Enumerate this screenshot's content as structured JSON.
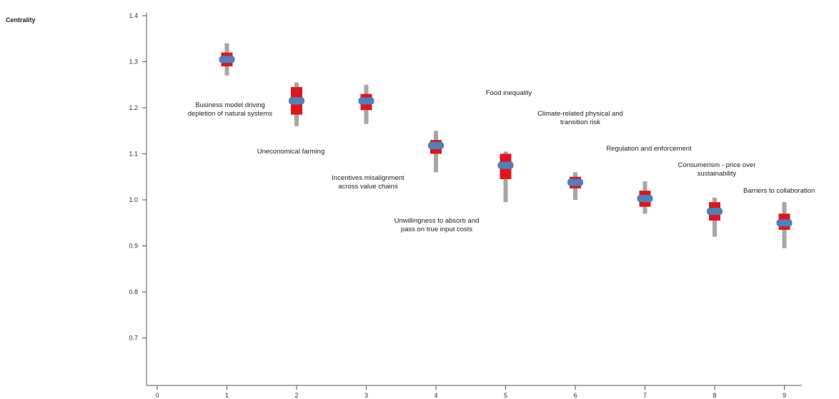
{
  "chart_data": {
    "type": "scatter",
    "title": "",
    "xlabel": "",
    "ylabel": "Centrality",
    "xlim": [
      0,
      9.3
    ],
    "ylim": [
      0.6,
      1.4
    ],
    "x_ticks": [
      "0",
      "1",
      "2",
      "3",
      "4",
      "5",
      "6",
      "7",
      "8",
      "9"
    ],
    "y_ticks": [
      "0.7",
      "0.8",
      "0.9",
      "1.0",
      "1.1",
      "1.2",
      "1.3",
      "1.4"
    ],
    "grid": false,
    "colors": {
      "whisker": "#a6a6a6",
      "interval": "#e0161b",
      "point": "#4f81bd"
    },
    "points": [
      {
        "x": 1,
        "y": 1.305,
        "range": [
          1.27,
          1.34
        ],
        "interval": [
          1.29,
          1.32
        ]
      },
      {
        "x": 2,
        "y": 1.215,
        "range": [
          1.16,
          1.255
        ],
        "interval": [
          1.185,
          1.245
        ]
      },
      {
        "x": 3,
        "y": 1.215,
        "range": [
          1.165,
          1.25
        ],
        "interval": [
          1.195,
          1.23
        ]
      },
      {
        "x": 4,
        "y": 1.118,
        "range": [
          1.06,
          1.15
        ],
        "interval": [
          1.1,
          1.13
        ]
      },
      {
        "x": 5,
        "y": 1.075,
        "range": [
          0.995,
          1.105
        ],
        "interval": [
          1.045,
          1.1
        ]
      },
      {
        "x": 6,
        "y": 1.038,
        "range": [
          1.0,
          1.06
        ],
        "interval": [
          1.025,
          1.05
        ]
      },
      {
        "x": 7,
        "y": 1.003,
        "range": [
          0.97,
          1.04
        ],
        "interval": [
          0.985,
          1.02
        ]
      },
      {
        "x": 8,
        "y": 0.975,
        "range": [
          0.92,
          1.005
        ],
        "interval": [
          0.955,
          0.995
        ]
      },
      {
        "x": 9,
        "y": 0.95,
        "range": [
          0.895,
          0.995
        ],
        "interval": [
          0.935,
          0.97
        ]
      }
    ],
    "annotations": [
      {
        "lines": [
          "Business model driving",
          "depletion of natural systems"
        ]
      },
      {
        "lines": [
          "Uneconomical farming"
        ]
      },
      {
        "lines": [
          "Incentives misalignment",
          "across value chains"
        ]
      },
      {
        "lines": [
          "Unwillingness to absorb and",
          "pass on true input costs"
        ]
      },
      {
        "lines": [
          "Food inequality"
        ]
      },
      {
        "lines": [
          "Climate-related physical and",
          "transition risk"
        ]
      },
      {
        "lines": [
          "Regulation and enforcement"
        ]
      },
      {
        "lines": [
          "Consumerism - price over",
          "sustainability"
        ]
      },
      {
        "lines": [
          "Barriers to collaboration"
        ]
      }
    ]
  }
}
